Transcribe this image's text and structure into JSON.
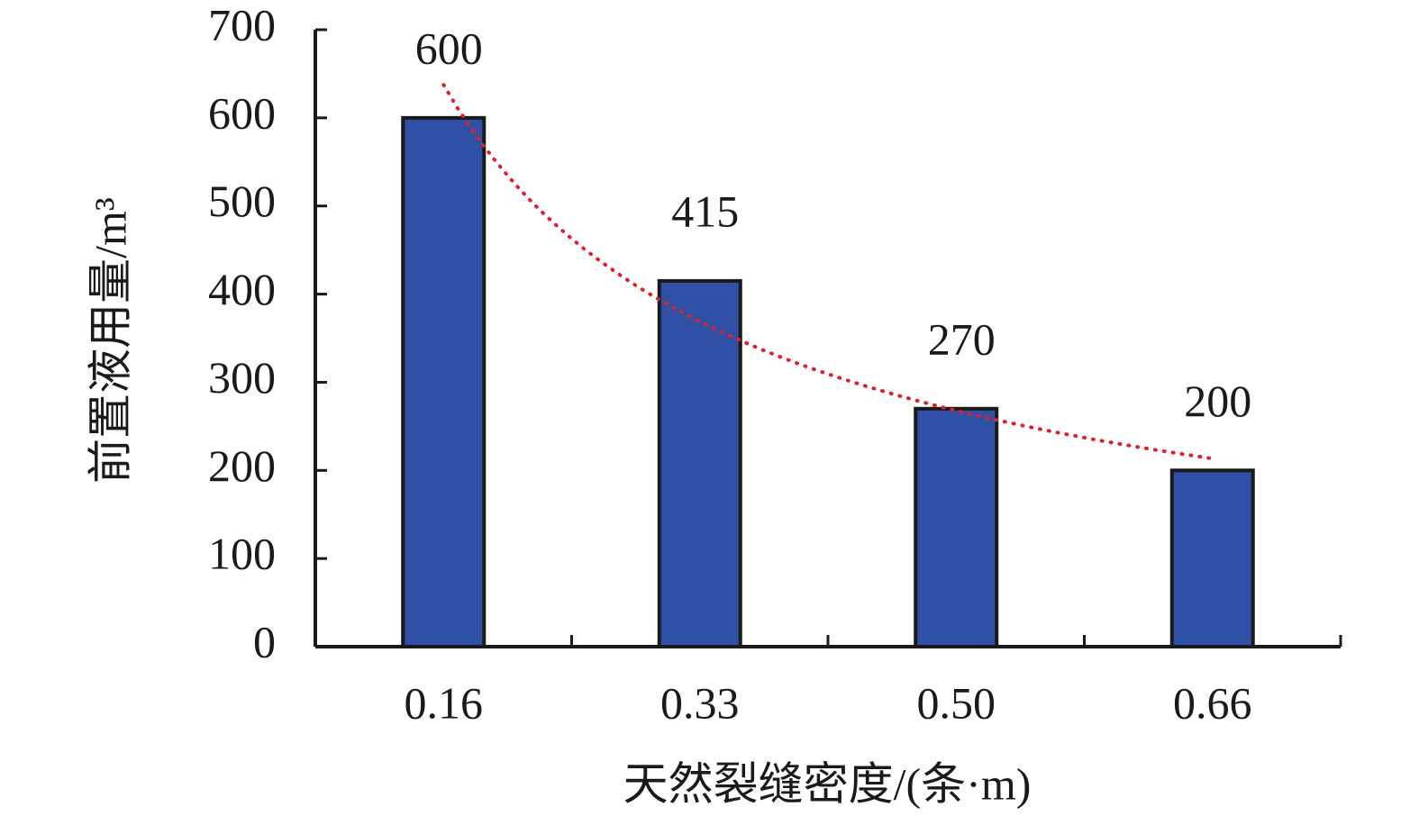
{
  "chart_data": {
    "type": "bar",
    "y_label": "前置液用量/m³",
    "x_label": "天然裂缝密度/(条·m)",
    "categories": [
      "0.16",
      "0.33",
      "0.50",
      "0.66"
    ],
    "values": [
      600,
      415,
      270,
      200
    ],
    "color": "#3050a8",
    "ylim": [
      0,
      700
    ],
    "yticks": [
      0,
      100,
      200,
      300,
      400,
      500,
      600,
      700
    ],
    "data_labels": true,
    "trendline": "power",
    "trendline_color": "#e0202a"
  }
}
